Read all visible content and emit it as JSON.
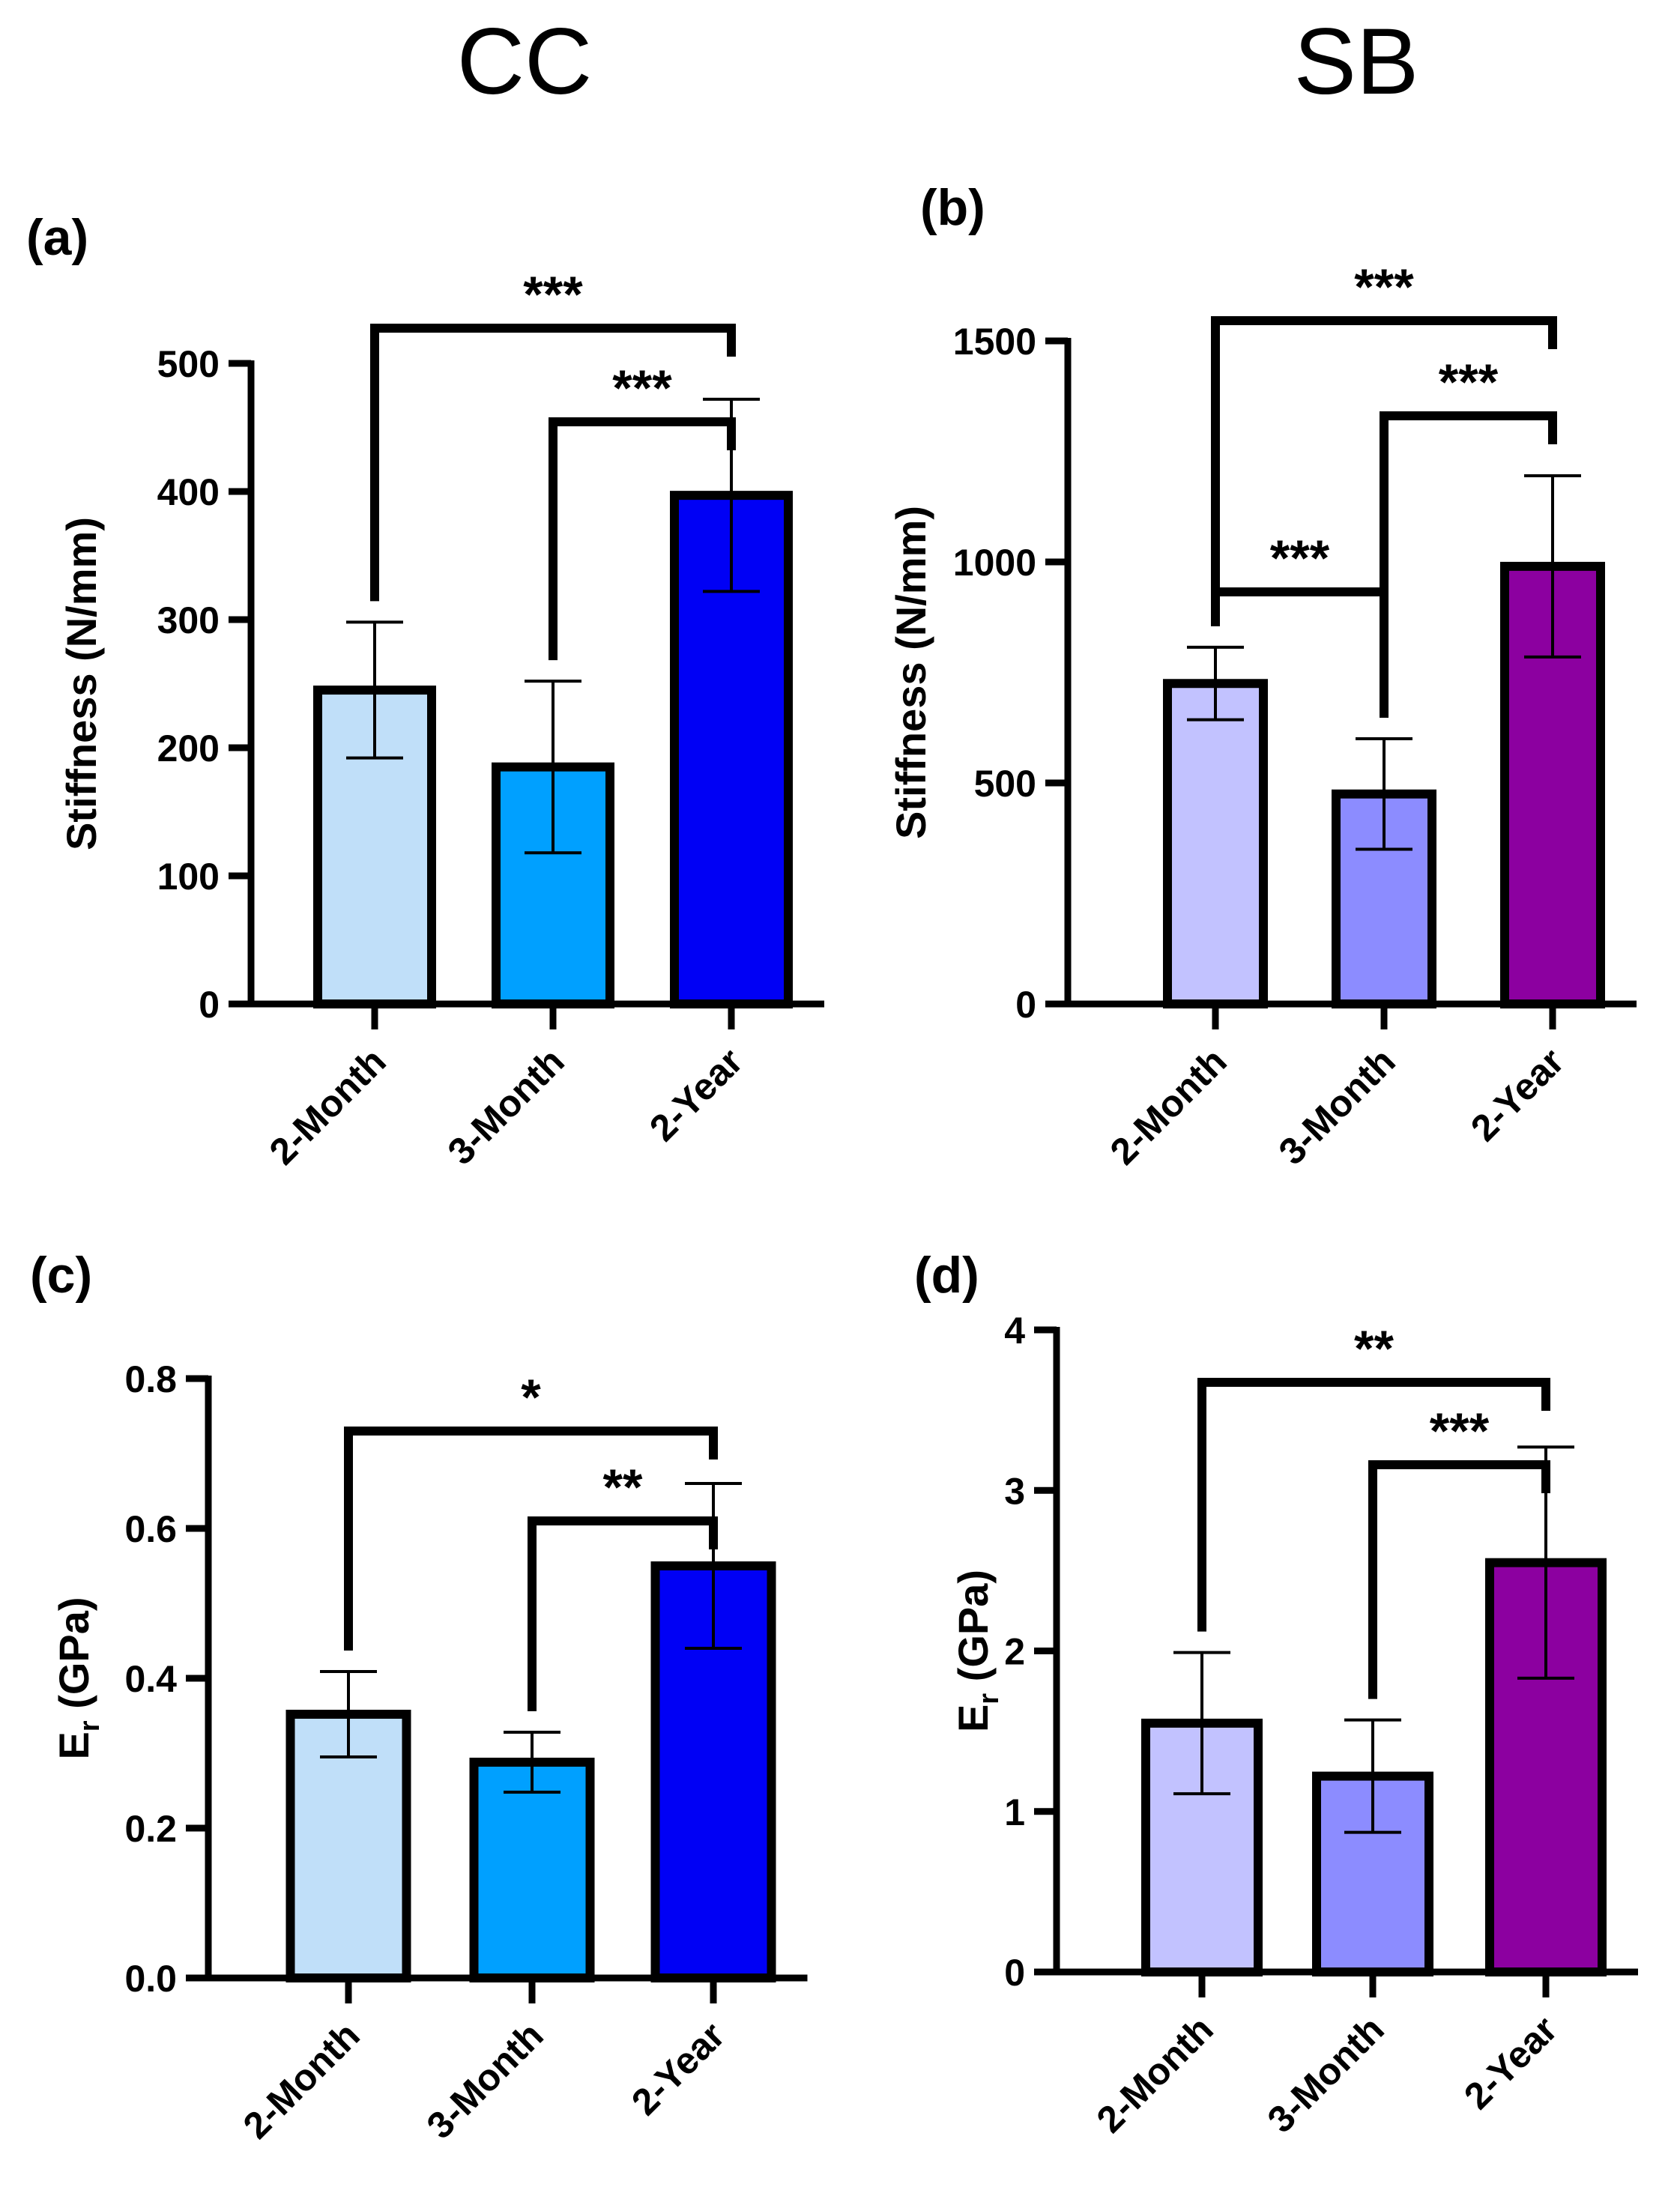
{
  "column_titles": [
    "CC",
    "SB"
  ],
  "chart_data": [
    {
      "panel": "(a)",
      "type": "bar",
      "categories": [
        "2-Month",
        "3-Month",
        "2-Year"
      ],
      "values": [
        245,
        185,
        397
      ],
      "errors": [
        53,
        67,
        75
      ],
      "colors": [
        "#c0dff9",
        "#00a0ff",
        "#0000f5"
      ],
      "ylabel": "Stiffness (N/mm)",
      "ylim": [
        0,
        500
      ],
      "yticks": [
        0,
        100,
        200,
        300,
        400,
        500
      ],
      "ytick_labels": [
        "0",
        "100",
        "200",
        "300",
        "400",
        "500"
      ],
      "significance": [
        {
          "from": 0,
          "to": 2,
          "label": "***",
          "level": 1
        },
        {
          "from": 1,
          "to": 2,
          "label": "***",
          "level": 0
        }
      ]
    },
    {
      "panel": "(b)",
      "type": "bar",
      "categories": [
        "2-Month",
        "3-Month",
        "2-Year"
      ],
      "values": [
        725,
        475,
        990
      ],
      "errors": [
        82,
        125,
        205
      ],
      "colors": [
        "#c2c2ff",
        "#8c8cff",
        "#8c00a0"
      ],
      "ylabel": "Stiffness (N/mm)",
      "ylim": [
        0,
        1500
      ],
      "yticks": [
        0,
        500,
        1000,
        1500
      ],
      "ytick_labels": [
        "0",
        "500",
        "1000",
        "1500"
      ],
      "significance": [
        {
          "from": 0,
          "to": 2,
          "label": "***",
          "level": 2
        },
        {
          "from": 1,
          "to": 2,
          "label": "***",
          "level": 1
        },
        {
          "from": 0,
          "to": 1,
          "label": "***",
          "level": 0
        }
      ]
    },
    {
      "panel": "(c)",
      "type": "bar",
      "categories": [
        "2-Month",
        "3-Month",
        "2-Year"
      ],
      "values": [
        0.352,
        0.288,
        0.55
      ],
      "errors": [
        0.057,
        0.04,
        0.11
      ],
      "colors": [
        "#c0dff9",
        "#00a0ff",
        "#0000f5"
      ],
      "ylabel_main": "E",
      "ylabel_sub": "r",
      "ylabel_rest": " (GPa)",
      "ylim": [
        0,
        0.8
      ],
      "yticks": [
        0,
        0.2,
        0.4,
        0.6,
        0.8
      ],
      "ytick_labels": [
        "0.0",
        "0.2",
        "0.4",
        "0.6",
        "0.8"
      ],
      "significance": [
        {
          "from": 0,
          "to": 2,
          "label": "*",
          "level": 1
        },
        {
          "from": 1,
          "to": 2,
          "label": "**",
          "level": 0
        }
      ]
    },
    {
      "panel": "(d)",
      "type": "bar",
      "categories": [
        "2-Month",
        "3-Month",
        "2-Year"
      ],
      "values": [
        1.55,
        1.22,
        2.55
      ],
      "errors": [
        0.44,
        0.35,
        0.72
      ],
      "colors": [
        "#c2c2ff",
        "#8c8cff",
        "#8c00a0"
      ],
      "ylabel_main": "E",
      "ylabel_sub": "r",
      "ylabel_rest": " (GPa)",
      "ylim": [
        0,
        4
      ],
      "yticks": [
        0,
        1,
        2,
        3,
        4
      ],
      "ytick_labels": [
        "0",
        "1",
        "2",
        "3",
        "4"
      ],
      "significance": [
        {
          "from": 0,
          "to": 2,
          "label": "**",
          "level": 1
        },
        {
          "from": 1,
          "to": 2,
          "label": "***",
          "level": 0
        }
      ]
    }
  ]
}
